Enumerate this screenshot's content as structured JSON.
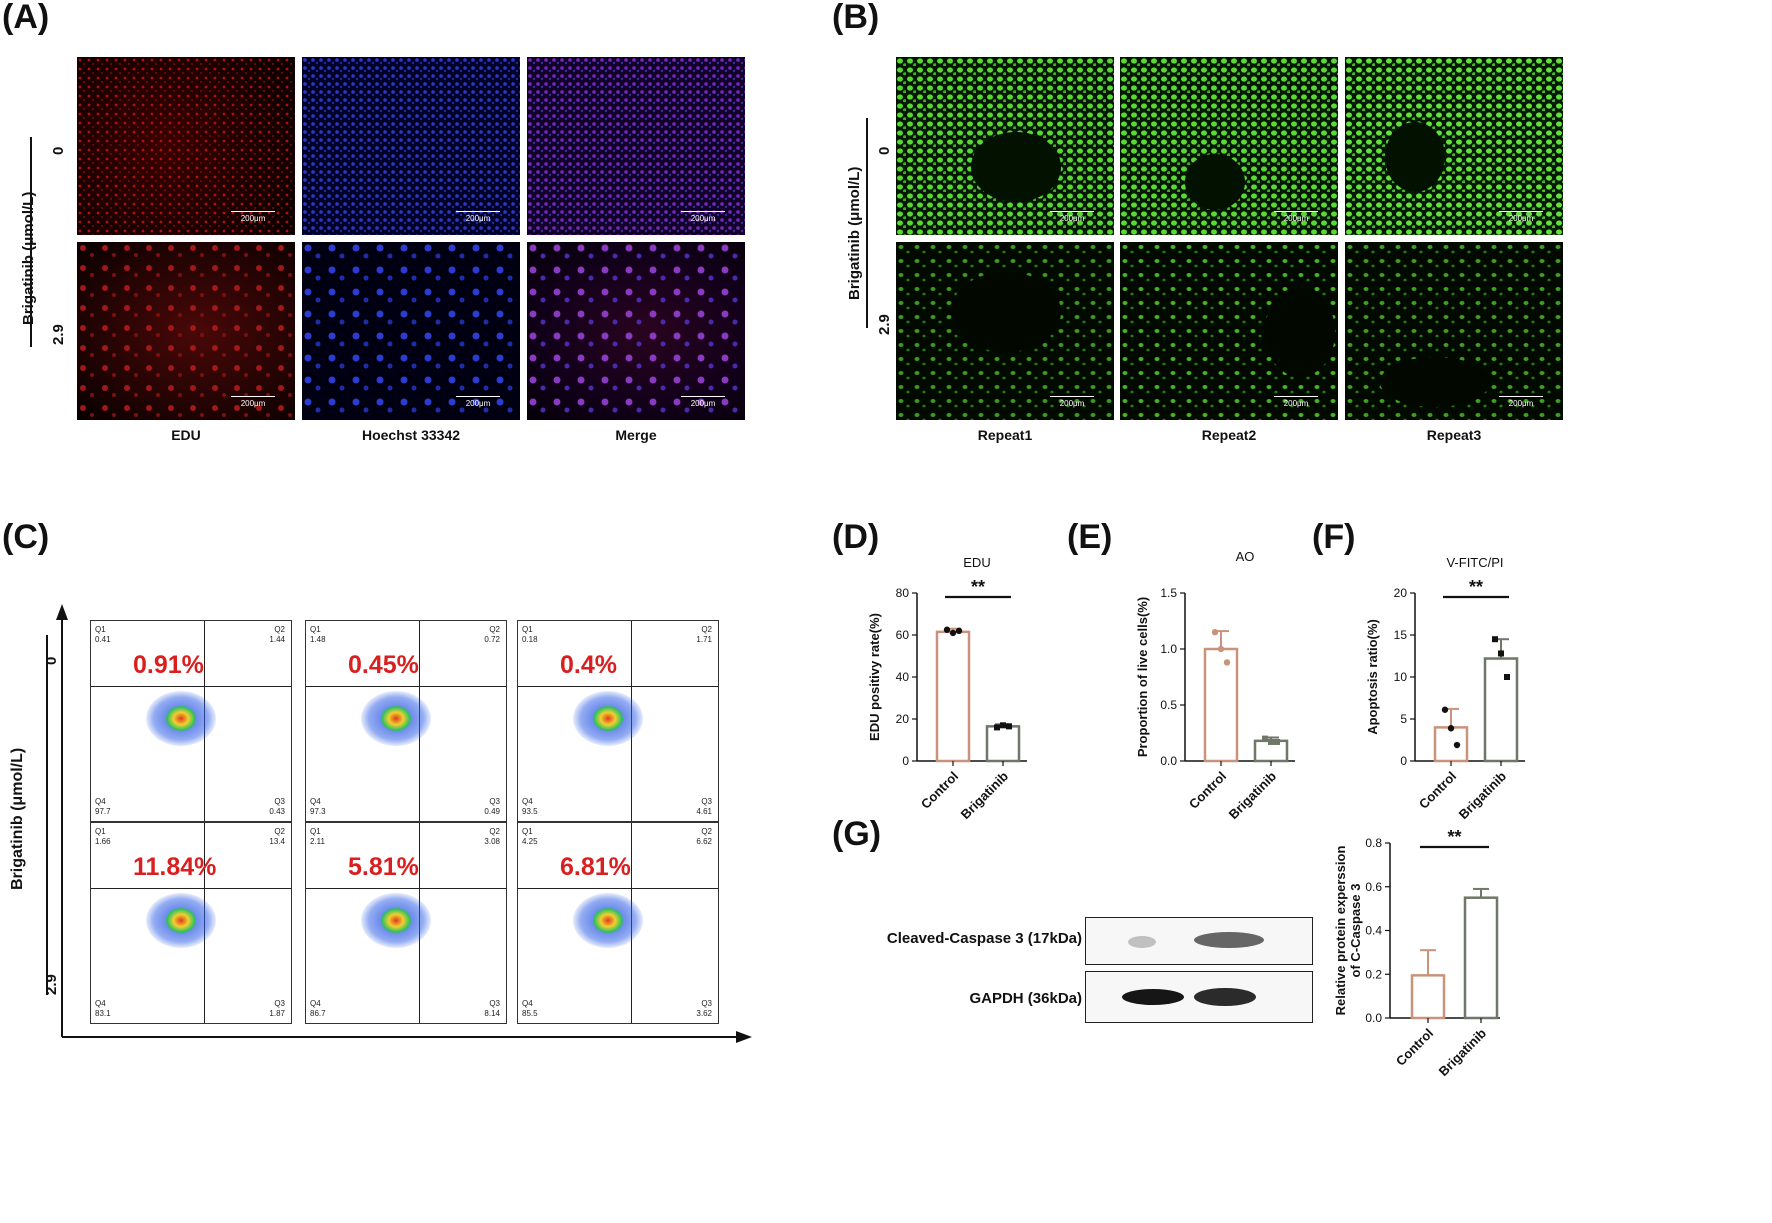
{
  "panels": {
    "A": "(A)",
    "B": "(B)",
    "C": "(C)",
    "D": "(D)",
    "E": "(E)",
    "F": "(F)",
    "G": "(G)"
  },
  "panel_a": {
    "y_axis": "Brigatinib (μmol/L)",
    "rows": [
      "0",
      "2.9"
    ],
    "columns": [
      "EDU",
      "Hoechst 33342",
      "Merge"
    ],
    "scale_bar": "200μm"
  },
  "panel_b": {
    "y_axis": "Brigatinib (μmol/L)",
    "rows": [
      "0",
      "2.9"
    ],
    "columns": [
      "Repeat1",
      "Repeat2",
      "Repeat3"
    ],
    "scale_bar": "200μm"
  },
  "panel_c": {
    "y_axis": "Brigatinib (μmol/L)",
    "rows": [
      "0",
      "2.9"
    ],
    "plots": [
      {
        "q1": "0.41",
        "q2": "1.44",
        "q3": "0.43",
        "q4": "97.7",
        "pct": "0.91%"
      },
      {
        "q1": "1.48",
        "q2": "0.72",
        "q3": "0.49",
        "q4": "97.3",
        "pct": "0.45%"
      },
      {
        "q1": "0.18",
        "q2": "1.71",
        "q3": "4.61",
        "q4": "93.5",
        "pct": "0.4%"
      },
      {
        "q1": "1.66",
        "q2": "13.4",
        "q3": "1.87",
        "q4": "83.1",
        "pct": "11.84%"
      },
      {
        "q1": "2.11",
        "q2": "3.08",
        "q3": "8.14",
        "q4": "86.7",
        "pct": "5.81%"
      },
      {
        "q1": "4.25",
        "q2": "6.62",
        "q3": "3.62",
        "q4": "85.5",
        "pct": "6.81%"
      }
    ],
    "quadrant_names": [
      "Q1",
      "Q2",
      "Q3",
      "Q4"
    ]
  },
  "panel_g": {
    "bands": [
      "Cleaved-Caspase 3 (17kDa)",
      "GAPDH (36kDa)"
    ]
  },
  "colors": {
    "control": "#c8937a",
    "brigatinib": "#6f7768",
    "significance": "#111111",
    "percent_red": "#d91f1f"
  },
  "chart_data": [
    {
      "type": "bar",
      "id": "D",
      "title": "EDU",
      "ylabel": "EDU positivy rate(%)",
      "categories": [
        "Control",
        "Brigatinib"
      ],
      "values": [
        61.5,
        16.5
      ],
      "errors": [
        1.5,
        1.0
      ],
      "points": [
        [
          62.5,
          61.0,
          62.0
        ],
        [
          16.0,
          17.0,
          16.5
        ]
      ],
      "ylim": [
        0,
        80
      ],
      "yticks": [
        0,
        20,
        40,
        60,
        80
      ],
      "significance": "**"
    },
    {
      "type": "bar",
      "id": "E",
      "title": "AO",
      "ylabel": "Proportion of live cells(%)",
      "categories": [
        "Control",
        "Brigatinib"
      ],
      "values": [
        1.0,
        0.18
      ],
      "errors": [
        0.16,
        0.03
      ],
      "points": [
        [
          1.15,
          1.0,
          0.88
        ],
        [
          0.2,
          0.17,
          0.17
        ]
      ],
      "ylim": [
        0,
        1.5
      ],
      "yticks": [
        0.0,
        0.5,
        1.0,
        1.5
      ],
      "significance": ""
    },
    {
      "type": "bar",
      "id": "F",
      "title": "V-FITC/PI",
      "ylabel": "Apoptosis ratio(%)",
      "categories": [
        "Control",
        "Brigatinib"
      ],
      "values": [
        4.0,
        12.2
      ],
      "errors": [
        2.2,
        2.3
      ],
      "points": [
        [
          6.1,
          3.9,
          1.9
        ],
        [
          14.5,
          12.8,
          10.0
        ]
      ],
      "ylim": [
        0,
        20
      ],
      "yticks": [
        0,
        5,
        10,
        15,
        20
      ],
      "significance": "**"
    },
    {
      "type": "bar",
      "id": "G",
      "title": "",
      "ylabel": "Relative protein experssion of C-Caspase 3",
      "categories": [
        "Control",
        "Brigatinib"
      ],
      "values": [
        0.195,
        0.55
      ],
      "errors": [
        0.115,
        0.04
      ],
      "points": [],
      "ylim": [
        0,
        0.8
      ],
      "yticks": [
        0.0,
        0.2,
        0.4,
        0.6,
        0.8
      ],
      "significance": "**"
    }
  ]
}
